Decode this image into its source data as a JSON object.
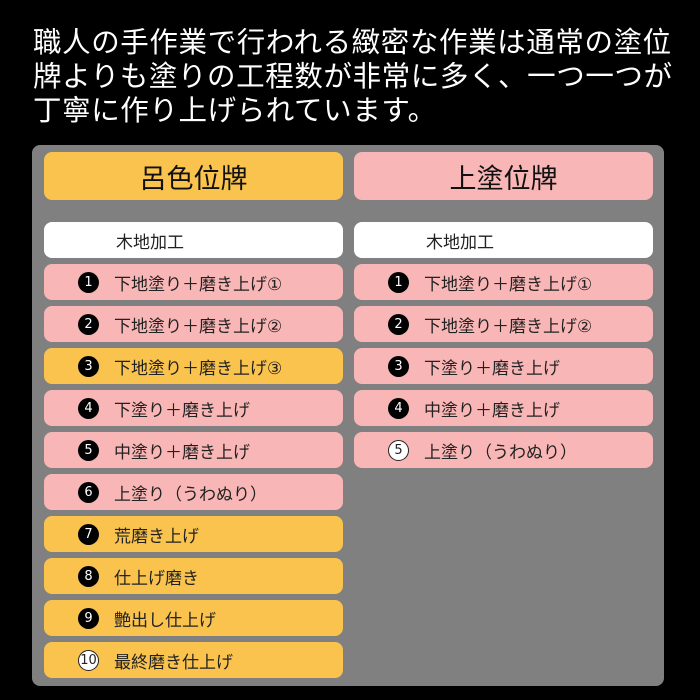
{
  "intro": [
    "職人の手作業で行われる緻密な作業は通常の塗位",
    "牌よりも塗りの工程数が非常に多く、一つ一つが",
    "丁寧に作り上げられています。"
  ],
  "colors": {
    "yellow": "#f9c34d",
    "pink": "#f9b6b6",
    "white": "#ffffff",
    "panel": "#808080"
  },
  "columns": [
    {
      "title": "呂色位牌",
      "title_color": "yellow",
      "base": "木地加工",
      "steps": [
        {
          "num": "1",
          "label": "下地塗り＋磨き上げ①",
          "color": "pink",
          "style": "filled"
        },
        {
          "num": "2",
          "label": "下地塗り＋磨き上げ②",
          "color": "pink",
          "style": "filled"
        },
        {
          "num": "3",
          "label": "下地塗り＋磨き上げ③",
          "color": "yellow",
          "style": "filled"
        },
        {
          "num": "4",
          "label": "下塗り＋磨き上げ",
          "color": "pink",
          "style": "filled"
        },
        {
          "num": "5",
          "label": "中塗り＋磨き上げ",
          "color": "pink",
          "style": "filled"
        },
        {
          "num": "6",
          "label": "上塗り（うわぬり）",
          "color": "pink",
          "style": "filled"
        },
        {
          "num": "7",
          "label": "荒磨き上げ",
          "color": "yellow",
          "style": "filled"
        },
        {
          "num": "8",
          "label": "仕上げ磨き",
          "color": "yellow",
          "style": "filled"
        },
        {
          "num": "9",
          "label": "艶出し仕上げ",
          "color": "yellow",
          "style": "filled"
        },
        {
          "num": "10",
          "label": "最終磨き仕上げ",
          "color": "yellow",
          "style": "open"
        }
      ]
    },
    {
      "title": "上塗位牌",
      "title_color": "pink",
      "base": "木地加工",
      "steps": [
        {
          "num": "1",
          "label": "下地塗り＋磨き上げ①",
          "color": "pink",
          "style": "filled"
        },
        {
          "num": "2",
          "label": "下地塗り＋磨き上げ②",
          "color": "pink",
          "style": "filled"
        },
        {
          "num": "3",
          "label": "下塗り＋磨き上げ",
          "color": "pink",
          "style": "filled"
        },
        {
          "num": "4",
          "label": "中塗り＋磨き上げ",
          "color": "pink",
          "style": "filled"
        },
        {
          "num": "5",
          "label": "上塗り（うわぬり）",
          "color": "pink",
          "style": "open"
        }
      ]
    }
  ]
}
